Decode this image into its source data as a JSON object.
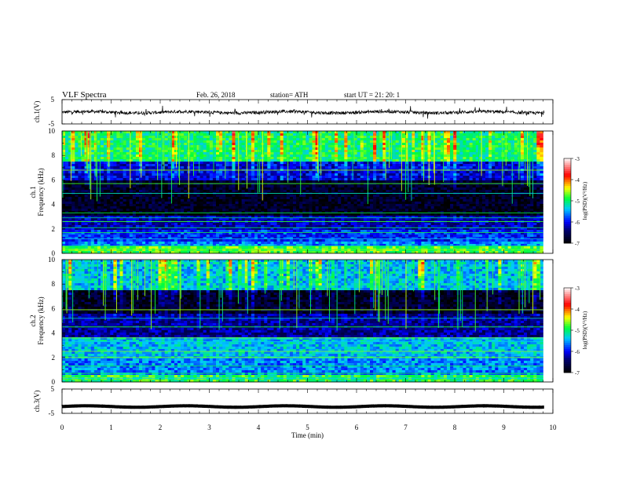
{
  "header": {
    "title": "VLF  Spectra",
    "date": "Feb. 26, 2018",
    "station": "station= ATH",
    "start": "start  UT  =    21: 20: 1"
  },
  "chart_data": [
    {
      "type": "line",
      "panel": "ch1-waveform",
      "ylabel": "ch.1(V)",
      "ylim": [
        -5,
        5
      ],
      "yticks": [
        "5",
        "-5"
      ],
      "xlim": [
        0,
        10
      ],
      "baseline": -0.2,
      "color": "#000000"
    },
    {
      "type": "heatmap",
      "panel": "ch1-spectrogram",
      "ylabel": "ch.1\nFrequency (kHz)",
      "ylim": [
        0,
        10
      ],
      "yticks": [
        "0",
        "2",
        "4",
        "6",
        "8",
        "10"
      ],
      "xlim": [
        0,
        9.8
      ],
      "colorbar": {
        "label": "log(PSD)(V²/Hz)",
        "range": [
          -7,
          -3
        ],
        "ticks": [
          "-3",
          "-4",
          "-5",
          "-6",
          "-7"
        ]
      },
      "bands_khz": [
        {
          "range": [
            0,
            0.5
          ],
          "level": -4.8
        },
        {
          "range": [
            0.5,
            1.0
          ],
          "level": -5.6
        },
        {
          "range": [
            1.0,
            2.0
          ],
          "level": -5.9
        },
        {
          "range": [
            2.0,
            3.0
          ],
          "level": -6.2
        },
        {
          "range": [
            3.0,
            6.0
          ],
          "level": -6.8
        },
        {
          "range": [
            6.0,
            7.5
          ],
          "level": -6.1
        },
        {
          "range": [
            7.5,
            10.0
          ],
          "level": -5.0
        }
      ],
      "tones_khz": [
        0.3,
        0.6,
        1.2,
        1.7,
        2.1,
        2.6,
        2.9,
        3.3,
        4.9,
        5.7,
        6.8
      ]
    },
    {
      "type": "heatmap",
      "panel": "ch2-spectrogram",
      "ylabel": "ch.2\nFrequency (kHz)",
      "ylim": [
        0,
        10
      ],
      "yticks": [
        "0",
        "2",
        "4",
        "6",
        "8",
        "10"
      ],
      "xlim": [
        0,
        9.8
      ],
      "colorbar": {
        "label": "log(PSD)(V²/Hz)",
        "range": [
          -7,
          -3
        ],
        "ticks": [
          "-3",
          "-4",
          "-5",
          "-6",
          "-7"
        ]
      },
      "bands_khz": [
        {
          "range": [
            0,
            0.5
          ],
          "level": -4.9
        },
        {
          "range": [
            0.5,
            2.0
          ],
          "level": -5.6
        },
        {
          "range": [
            2.0,
            3.6
          ],
          "level": -5.4
        },
        {
          "range": [
            3.6,
            5.5
          ],
          "level": -6.3
        },
        {
          "range": [
            5.5,
            7.5
          ],
          "level": -6.8
        },
        {
          "range": [
            7.5,
            10.0
          ],
          "level": -5.4
        }
      ],
      "tones_khz": [
        0.3,
        0.7,
        1.3,
        2.0,
        2.5,
        3.3,
        3.6,
        4.5,
        5.2,
        5.9
      ]
    },
    {
      "type": "line",
      "panel": "ch3-waveform",
      "ylabel": "ch.3(V)",
      "ylim": [
        -5,
        5
      ],
      "yticks": [
        "5",
        "-5"
      ],
      "xlim": [
        0,
        10
      ],
      "baseline": -2.2,
      "color": "#000000"
    }
  ],
  "xaxis": {
    "label": "Time  (min)",
    "range": [
      0,
      10
    ],
    "ticks": [
      "0",
      "1",
      "2",
      "3",
      "4",
      "5",
      "6",
      "7",
      "8",
      "9",
      "10"
    ]
  },
  "colors": {
    "palette": [
      "#000000",
      "#0000ff",
      "#00e0ff",
      "#00ff40",
      "#ffff00",
      "#ff0000",
      "#ffffff"
    ]
  }
}
